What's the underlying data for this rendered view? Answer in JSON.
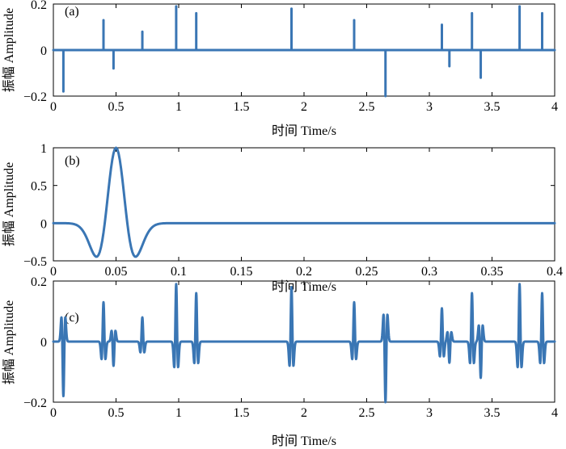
{
  "chart_data": [
    {
      "type": "line",
      "panel_label": "(a)",
      "xlabel": "时间 Time/s",
      "ylabel": "振幅 Amplitude",
      "xlim": [
        0,
        4
      ],
      "ylim": [
        -0.2,
        0.2
      ],
      "xticks": [
        "0",
        "0.5",
        "1",
        "1.5",
        "2",
        "2.5",
        "3",
        "3.5",
        "4"
      ],
      "yticks": [
        "−0.2",
        "0",
        "0.2"
      ],
      "ytick_values": [
        -0.2,
        0,
        0.2
      ],
      "grid": false,
      "color": "#3a76b4",
      "spikes": {
        "x": [
          0.08,
          0.4,
          0.48,
          0.71,
          0.98,
          1.14,
          1.9,
          2.4,
          2.65,
          3.1,
          3.16,
          3.34,
          3.41,
          3.72,
          3.9
        ],
        "y": [
          -0.18,
          0.13,
          -0.08,
          0.08,
          0.19,
          0.16,
          0.18,
          0.13,
          -0.2,
          0.11,
          -0.07,
          0.16,
          -0.12,
          0.19,
          0.16
        ]
      }
    },
    {
      "type": "line",
      "panel_label": "(b)",
      "xlabel": "时间 Time/s",
      "ylabel": "振幅 Amplitude",
      "xlim": [
        0,
        0.4
      ],
      "ylim": [
        -0.5,
        1
      ],
      "xticks": [
        "0",
        "0.05",
        "0.1",
        "0.15",
        "0.2",
        "0.25",
        "0.3",
        "0.35",
        "0.4"
      ],
      "yticks": [
        "−0.5",
        "0",
        "0.5",
        "1"
      ],
      "ytick_values": [
        -0.5,
        0,
        0.5,
        1
      ],
      "grid": false,
      "color": "#3a76b4",
      "wavelet": {
        "type": "ricker",
        "center": 0.05,
        "peak": 1.0
      }
    },
    {
      "type": "line",
      "panel_label": "(c)",
      "xlabel": "时间 Time/s",
      "ylabel": "振幅 Amplitude",
      "xlim": [
        0,
        4
      ],
      "ylim": [
        -0.2,
        0.2
      ],
      "xticks": [
        "0",
        "0.5",
        "1",
        "1.5",
        "2",
        "2.5",
        "3",
        "3.5",
        "4"
      ],
      "yticks": [
        "−0.2",
        "0",
        "0.2"
      ],
      "ytick_values": [
        -0.2,
        0,
        0.2
      ],
      "grid": false,
      "color": "#3a76b4",
      "description_of_series": "convolution of (a) with (b)"
    }
  ]
}
